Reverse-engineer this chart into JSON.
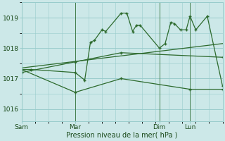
{
  "title": "",
  "xlabel": "Pression niveau de la mer( hPa )",
  "background_color": "#cce8e8",
  "grid_color": "#99cccc",
  "line_color": "#2d6a2d",
  "marker_color": "#2d6a2d",
  "ylim": [
    1015.6,
    1019.5
  ],
  "yticks": [
    1016,
    1017,
    1018,
    1019
  ],
  "day_labels": [
    "Sam",
    "Mar",
    "Dim",
    "Lun"
  ],
  "day_positions": [
    0.0,
    0.28,
    0.72,
    0.88
  ],
  "xlim": [
    0.0,
    1.05
  ],
  "series1_x": [
    0.0,
    0.05,
    0.28,
    0.33,
    0.36,
    0.38,
    0.42,
    0.44,
    0.52,
    0.55,
    0.58,
    0.6,
    0.62,
    0.72,
    0.75,
    0.78,
    0.8,
    0.83,
    0.86,
    0.88,
    0.91,
    0.97,
    1.05
  ],
  "series1_y": [
    1017.3,
    1017.3,
    1017.2,
    1016.95,
    1018.2,
    1018.25,
    1018.6,
    1018.55,
    1019.15,
    1019.15,
    1018.55,
    1018.75,
    1018.75,
    1018.0,
    1018.15,
    1018.85,
    1018.8,
    1018.6,
    1018.6,
    1019.05,
    1018.6,
    1019.05,
    1016.75
  ],
  "series2_x": [
    0.0,
    0.28,
    0.52,
    1.05
  ],
  "series2_y": [
    1017.2,
    1017.55,
    1017.85,
    1017.7
  ],
  "series3_x": [
    0.0,
    1.05
  ],
  "series3_y": [
    1017.35,
    1018.15
  ],
  "series4_x": [
    0.0,
    0.28,
    0.52,
    0.88,
    1.05
  ],
  "series4_y": [
    1017.3,
    1016.55,
    1017.0,
    1016.65,
    1016.65
  ],
  "figsize": [
    3.2,
    2.0
  ],
  "dpi": 100
}
